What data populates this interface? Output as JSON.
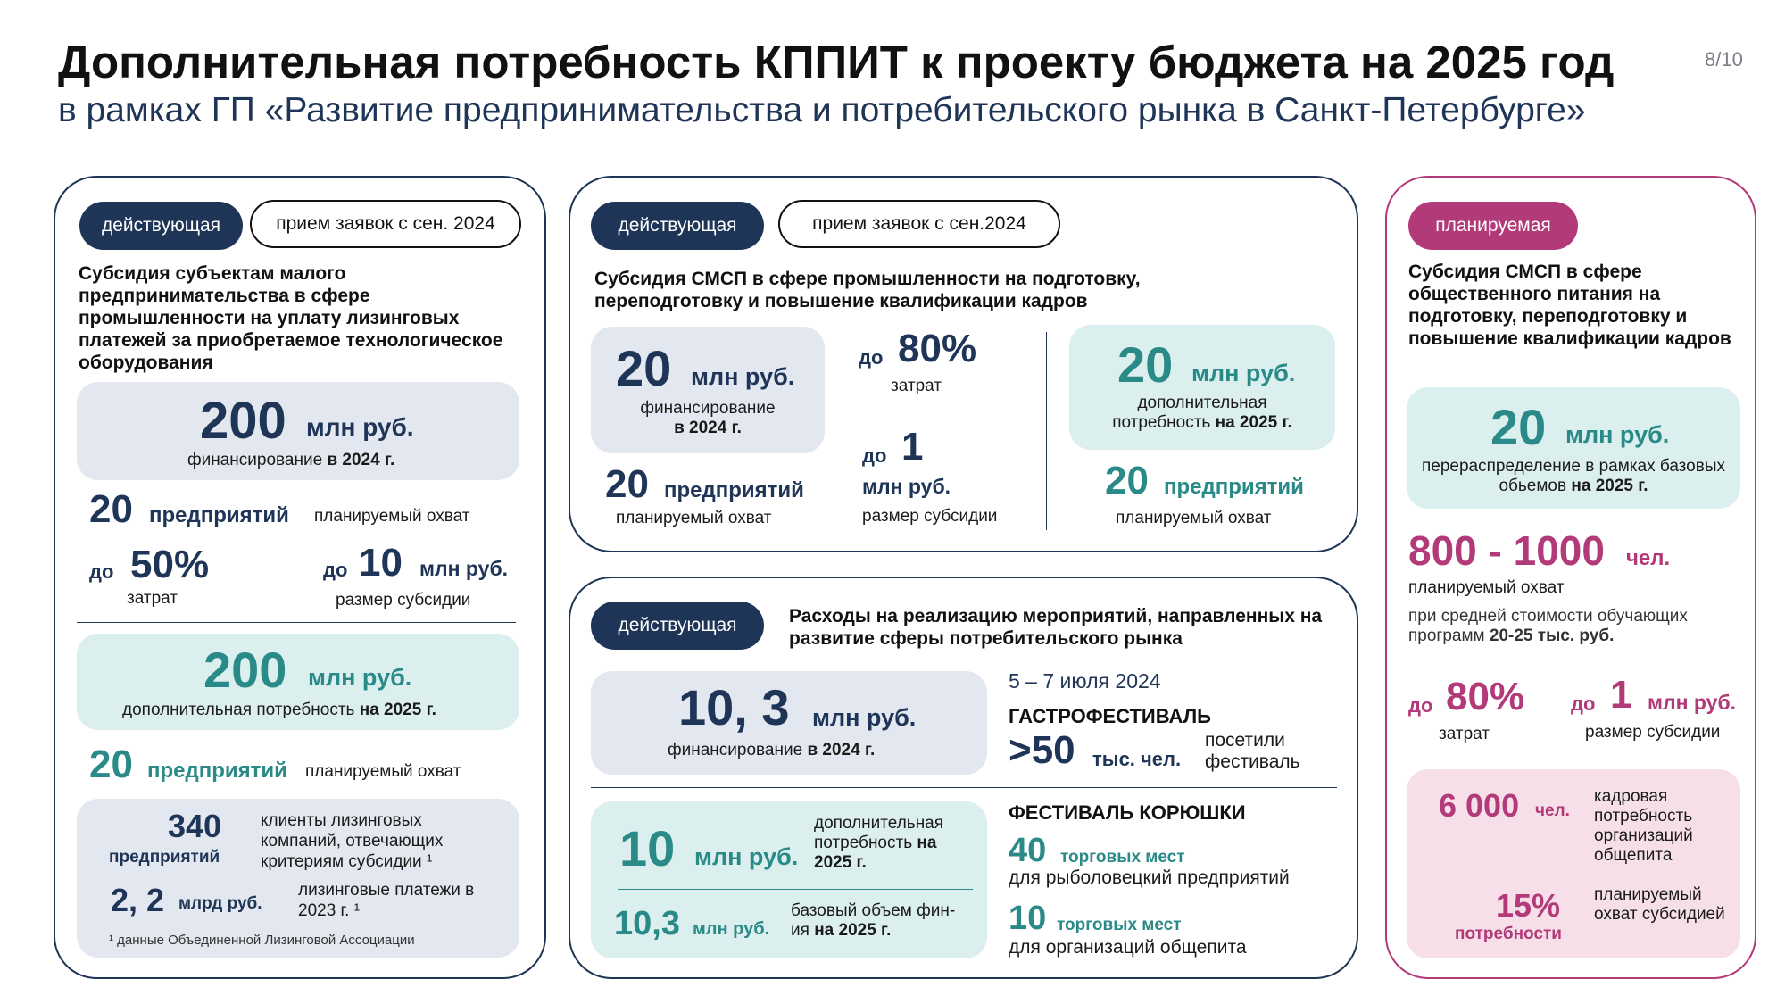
{
  "header": {
    "title": "Дополнительная потребность КППИТ к проекту бюджета на 2025 год",
    "subtitle": "в рамках ГП «Развитие предпринимательства и потребительского рынка в Санкт-Петербурге»",
    "page": "8/10"
  },
  "card1": {
    "status": "действующая",
    "intake": "прием заявок с сен. 2024",
    "description": "Субсидия субъектам малого предпринимательства в сфере промышленности на уплату лизинговых платежей за приобретаемое технологическое оборудования",
    "financing": {
      "value": "200",
      "unit": "млн руб.",
      "label": "финансирование",
      "label_bold": "в 2024 г."
    },
    "coverage": {
      "value": "20",
      "unit": "предприятий",
      "label": "планируемый охват"
    },
    "costs": {
      "prefix": "до",
      "value": "50%",
      "label": "затрат"
    },
    "subsidy": {
      "prefix": "до",
      "value": "10",
      "unit": "млн руб.",
      "label": "размер субсидии"
    },
    "need": {
      "value": "200",
      "unit": "млн руб.",
      "label": "дополнительная потребность",
      "label_bold": "на 2025 г."
    },
    "coverage2": {
      "value": "20",
      "unit": "предприятий",
      "label": "планируемый охват"
    },
    "clients": {
      "value": "340",
      "unit": "предприятий",
      "label": "клиенты лизинговых компаний, отвечающих критериям субсидии ¹"
    },
    "payments": {
      "value": "2, 2",
      "unit": "млрд руб.",
      "label": "лизинговые платежи в 2023 г. ¹"
    },
    "footnote": "¹ данные Объединенной Лизинговой Ассоциации"
  },
  "card2": {
    "status": "действующая",
    "intake": "прием заявок с сен.2024",
    "description": "Субсидия СМСП в сфере промышленности на подготовку, переподготовку и повышение квалификации кадров",
    "financing": {
      "value": "20",
      "unit": "млн руб.",
      "label": "финансирование",
      "label_bold": "в 2024 г."
    },
    "coverage": {
      "value": "20",
      "unit": "предприятий",
      "label": "планируемый охват"
    },
    "costs": {
      "prefix": "до",
      "value": "80%",
      "label": "затрат"
    },
    "subsidy": {
      "prefix": "до",
      "value": "1",
      "unit": "млн руб.",
      "label": "размер субсидии"
    },
    "need": {
      "value": "20",
      "unit": "млн руб.",
      "label": "дополнительная",
      "label2": "потребность",
      "label_bold": "на 2025 г."
    },
    "coverage2": {
      "value": "20",
      "unit": "предприятий",
      "label": "планируемый охват"
    }
  },
  "card3": {
    "status": "действующая",
    "description": "Расходы на реализацию мероприятий, направленных на развитие сферы потребительского рынка",
    "financing": {
      "value": "10, 3",
      "unit": "млн руб.",
      "label": "финансирование",
      "label_bold": "в 2024 г."
    },
    "need": {
      "value": "10",
      "unit": "млн руб.",
      "label": "дополнительная потребность",
      "label_bold": "на 2025 г."
    },
    "base": {
      "value": "10,3",
      "unit": "млн руб.",
      "label": "базовый объем фин-ия",
      "label_bold": "на 2025 г."
    },
    "gastro": {
      "date": "5 – 7 июля 2024",
      "title": "ГАСТРОФЕСТИВАЛЬ",
      "value": ">50",
      "unit": "тыс. чел.",
      "label": "посетили фестиваль"
    },
    "smelt": {
      "title": "ФЕСТИВАЛЬ КОРЮШКИ",
      "a_value": "40",
      "a_unit": "торговых мест",
      "a_label": "для рыболовецкий предприятий",
      "b_value": "10",
      "b_unit": "торговых мест",
      "b_label": "для организаций общепита"
    }
  },
  "card4": {
    "status": "планируемая",
    "description": "Субсидия СМСП в сфере общественного питания на подготовку, переподготовку и повышение квалификации кадров",
    "redistribution": {
      "value": "20",
      "unit": "млн руб.",
      "label": "перераспределение в рамках базовых обьемов",
      "label_bold": "на 2025 г."
    },
    "coverage": {
      "value": "800 - 1000",
      "unit": "чел.",
      "label": "планируемый охват"
    },
    "cost_note": "при средней стоимости обучающих программ",
    "cost_note_bold": "20-25 тыс. руб.",
    "costs": {
      "prefix": "до",
      "value": "80%",
      "label": "затрат"
    },
    "subsidy": {
      "prefix": "до",
      "value": "1",
      "unit": "млн руб.",
      "label": "размер субсидии"
    },
    "staff": {
      "value": "6 000",
      "unit": "чел.",
      "label": "кадровая потребность организаций общепита"
    },
    "share": {
      "value": "15%",
      "unit": "потребности",
      "label": "планируемый охват субсидией"
    }
  }
}
